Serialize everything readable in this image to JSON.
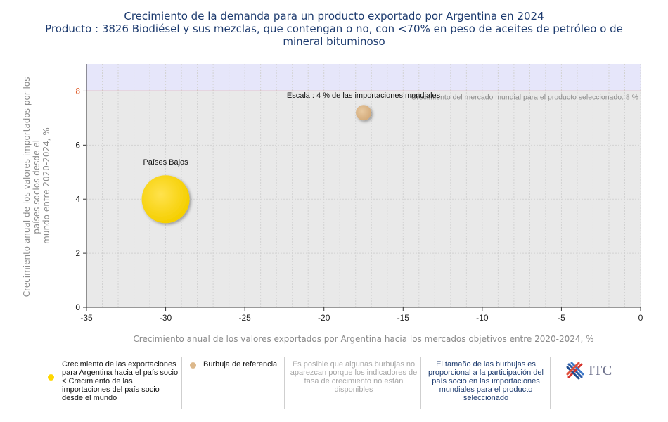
{
  "chart_data": {
    "type": "scatter",
    "title": "Crecimiento de la demanda para un producto exportado por Argentina en 2024",
    "subtitle": "Producto : 3826 Biodiésel y sus mezclas, que contengan o no, con <70% en peso de aceites de petróleo o de mineral bituminoso",
    "xlabel": "Crecimiento anual de los valores exportados por Argentina hacia los mercados objetivos entre 2020-2024, %",
    "ylabel": "Crecimiento anual de los valores importados por los países socios desde el mundo entre 2020-2024, %",
    "xlim": [
      -35,
      0
    ],
    "ylim": [
      0,
      9
    ],
    "x_ticks": [
      -35,
      -30,
      -25,
      -20,
      -15,
      -10,
      -5,
      0
    ],
    "y_ticks": [
      0,
      2,
      4,
      6,
      8
    ],
    "reference_line": {
      "y": 8,
      "label": "Crecimiento del mercado mundial para el producto seleccionado: 8 %"
    },
    "points": [
      {
        "label": "Países Bajos",
        "x": -30,
        "y": 4,
        "color": "#ffd700",
        "share": 0.05
      }
    ],
    "reference_bubble": {
      "label": "Escala : 4 % de las importaciones mundiales",
      "x": -17.5,
      "y": 7.2,
      "color": "#dcb88b",
      "share": 0.04
    },
    "colors": {
      "band": "#e6e6fa",
      "plot_bg": "#e9e9e9",
      "ref_line": "#e0602f"
    }
  },
  "legend": {
    "item1": {
      "text": "Crecimiento de las exportaciones para Argentina hacia el país socio < Crecimiento de las importaciones del país socio desde el mundo",
      "color": "#ffd700"
    },
    "item2": {
      "text": "Burbuja de referencia",
      "color": "#dcb88b"
    },
    "note1": "Es posible que algunas burbujas no aparezcan porque los indicadores de tasa de crecimiento no están disponibles",
    "note2": "El tamaño de las burbujas es proporcional a la participación del país socio en las importaciones mundiales para el producto seleccionado",
    "logo_text": "ITC"
  }
}
